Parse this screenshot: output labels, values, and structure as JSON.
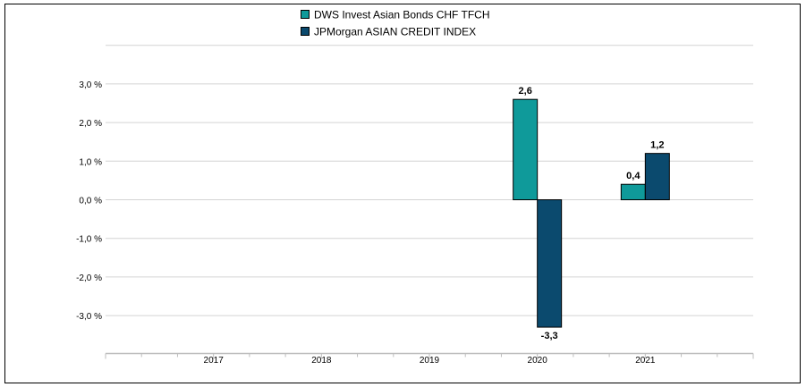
{
  "chart_data": {
    "type": "bar",
    "categories": [
      "2017",
      "2018",
      "2019",
      "2020",
      "2021"
    ],
    "series": [
      {
        "name": "DWS Invest Asian Bonds  CHF TFCH",
        "color": "#0f9a9a",
        "values": [
          null,
          null,
          null,
          2.6,
          0.4
        ],
        "labels": [
          "",
          "",
          "",
          "2,6",
          "0,4"
        ]
      },
      {
        "name": "JPMorgan ASIAN CREDIT INDEX",
        "color": "#0b4a6e",
        "values": [
          null,
          null,
          null,
          -3.3,
          1.2
        ],
        "labels": [
          "",
          "",
          "",
          "-3,3",
          "1,2"
        ]
      }
    ],
    "yticks": [
      {
        "value": 3,
        "label": "3,0 %"
      },
      {
        "value": 2,
        "label": "2,0 %"
      },
      {
        "value": 1,
        "label": "1,0 %"
      },
      {
        "value": 0,
        "label": "0,0 %"
      },
      {
        "value": -1,
        "label": "-1,0 %"
      },
      {
        "value": -2,
        "label": "-2,0 %"
      },
      {
        "value": -3,
        "label": "-3,0 %"
      }
    ],
    "ylim": [
      -4,
      4
    ],
    "grid": true,
    "legend_position": "top-center"
  }
}
